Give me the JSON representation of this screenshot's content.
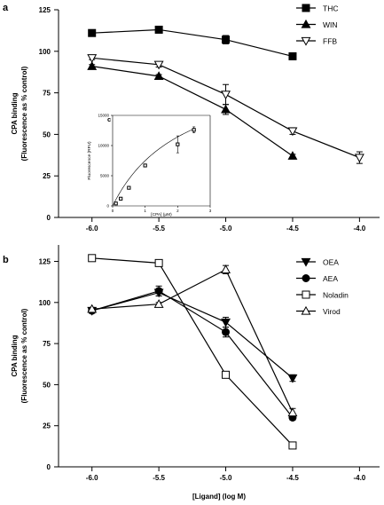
{
  "chart_data": [
    {
      "panel": "a",
      "type": "line",
      "ylabel": "CPA binding (Fluorescence as % control)",
      "xlabel": "",
      "xlim": [
        -6.25,
        -3.85
      ],
      "ylim": [
        0,
        125
      ],
      "xticks": [
        "-6.0",
        "-5.5",
        "-5.0",
        "-4.5",
        "-4.0"
      ],
      "yticks": [
        "0",
        "25",
        "50",
        "75",
        "100",
        "125"
      ],
      "legend_position": "top-right",
      "series": [
        {
          "name": "THC",
          "marker": "square-filled",
          "x": [
            -6.0,
            -5.5,
            -5.0,
            -4.5
          ],
          "y": [
            111,
            113,
            107,
            97
          ],
          "err": [
            1,
            1,
            2.5,
            1
          ]
        },
        {
          "name": "WIN",
          "marker": "triangle-up-filled",
          "x": [
            -6.0,
            -5.5,
            -5.0,
            -4.5
          ],
          "y": [
            91,
            85,
            65,
            37
          ],
          "err": [
            1,
            1,
            3,
            1
          ]
        },
        {
          "name": "FFB",
          "marker": "triangle-down-open",
          "x": [
            -6.0,
            -5.5,
            -5.0,
            -4.5,
            -4.0
          ],
          "y": [
            96,
            92,
            74,
            52,
            36
          ],
          "err": [
            1,
            1.5,
            6,
            2,
            3.5
          ]
        }
      ]
    },
    {
      "panel": "c",
      "inset": true,
      "type": "line",
      "xlabel": "[CPA] (μM)",
      "ylabel": "Fluorescence (RFU)",
      "xlim": [
        0,
        3
      ],
      "ylim": [
        0,
        15000
      ],
      "xticks": [
        "0",
        "1",
        "2",
        "3"
      ],
      "yticks": [
        "0",
        "5000",
        "10000",
        "15000"
      ],
      "series": [
        {
          "marker": "square-open",
          "x": [
            0.1,
            0.25,
            0.5,
            1.0,
            2.0,
            2.5
          ],
          "y": [
            400,
            1200,
            3000,
            6700,
            10200,
            12600
          ],
          "err": [
            0,
            0,
            0,
            0,
            1400,
            500
          ]
        }
      ]
    },
    {
      "panel": "b",
      "type": "line",
      "ylabel": "CPA binding (Fluorescence as % control)",
      "xlabel": "[Ligand]  (log M)",
      "xlim": [
        -6.25,
        -3.85
      ],
      "ylim": [
        0,
        135
      ],
      "xticks": [
        "-6.0",
        "-5.5",
        "-5.0",
        "-4.5",
        "-4.0"
      ],
      "yticks": [
        "0",
        "25",
        "50",
        "75",
        "100",
        "125"
      ],
      "legend_position": "top-right",
      "series": [
        {
          "name": "OEA",
          "marker": "triangle-down-filled",
          "x": [
            -6.0,
            -5.5,
            -5.0,
            -4.5
          ],
          "y": [
            95,
            106,
            88,
            54
          ],
          "err": [
            1.5,
            2,
            3,
            2
          ]
        },
        {
          "name": "AEA",
          "marker": "circle-filled",
          "x": [
            -6.0,
            -5.5,
            -5.0,
            -4.5
          ],
          "y": [
            95,
            107,
            82,
            30
          ],
          "err": [
            1.5,
            3,
            3,
            1.5
          ]
        },
        {
          "name": "Noladin",
          "marker": "square-open",
          "x": [
            -6.0,
            -5.5,
            -5.0,
            -4.5
          ],
          "y": [
            127,
            124,
            56,
            13
          ],
          "err": [
            2,
            1.5,
            1,
            1
          ]
        },
        {
          "name": "Virod",
          "marker": "triangle-up-open",
          "x": [
            -6.0,
            -5.5,
            -5.0,
            -4.5
          ],
          "y": [
            96,
            99,
            120,
            33
          ],
          "err": [
            1,
            1,
            2.5,
            2.5
          ]
        }
      ]
    }
  ]
}
